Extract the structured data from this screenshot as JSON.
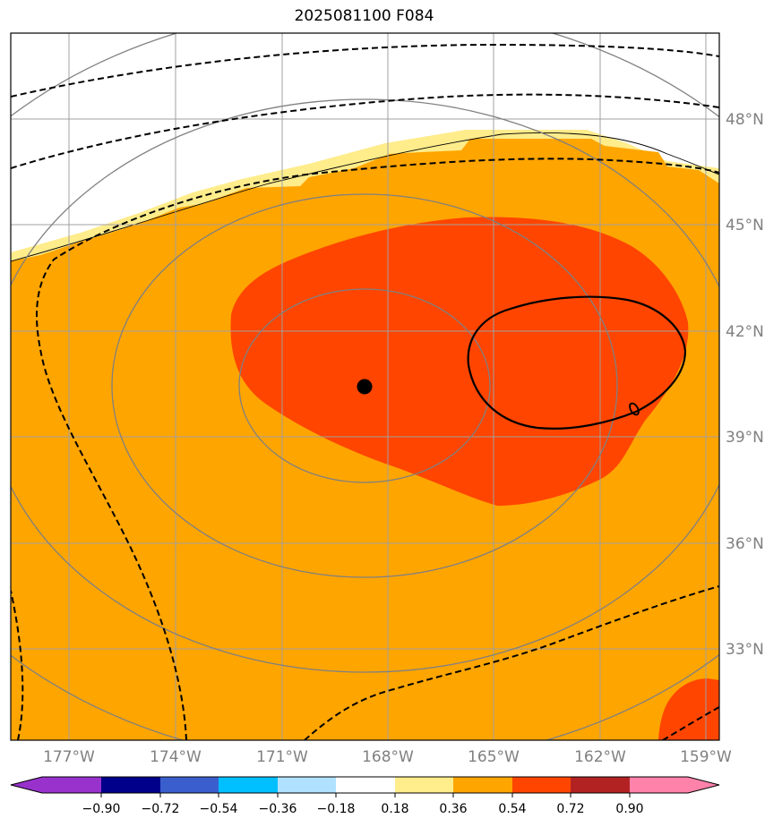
{
  "title": "2025081100 F084",
  "map": {
    "lat_labels": [
      "48°N",
      "45°N",
      "42°N",
      "39°N",
      "36°N",
      "33°N"
    ],
    "lon_labels": [
      "177°W",
      "174°W",
      "171°W",
      "168°W",
      "165°W",
      "162°W",
      "159°W"
    ]
  },
  "colorbar": {
    "ticks": [
      "−0.90",
      "−0.72",
      "−0.54",
      "−0.36",
      "−0.18",
      "0.18",
      "0.36",
      "0.54",
      "0.72",
      "0.90"
    ],
    "colors": [
      "#9932cc",
      "#00008b",
      "#3a5fcd",
      "#00bfff",
      "#b0e2ff",
      "#ffffff",
      "#ffec8b",
      "#ffa500",
      "#ff4500",
      "#b22222",
      "#ff82ab"
    ]
  },
  "colors": {
    "orange_fill": "#ffa500",
    "red_fill": "#ff4500",
    "yellow_fill": "#ffec8b",
    "grid": "#a0a0a0",
    "gray_contour": "#808080"
  }
}
